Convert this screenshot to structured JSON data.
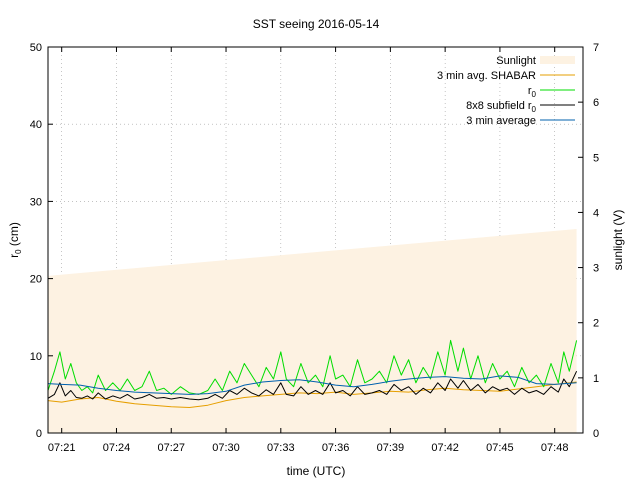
{
  "chart_data": {
    "type": "line",
    "title": "SST seeing 2016-05-14",
    "xlabel": "time (UTC)",
    "ylabel": "r",
    "ylabel_sub": "0",
    "ylabel_unit": " (cm)",
    "y2label": "sunlight (V)",
    "xlim": [
      20.25,
      49.55
    ],
    "ylim": [
      0,
      50
    ],
    "y2lim": [
      0,
      7
    ],
    "x_ticks": [
      {
        "minute": 21,
        "label": "07:21"
      },
      {
        "minute": 24,
        "label": "07:24"
      },
      {
        "minute": 27,
        "label": "07:27"
      },
      {
        "minute": 30,
        "label": "07:30"
      },
      {
        "minute": 33,
        "label": "07:33"
      },
      {
        "minute": 36,
        "label": "07:36"
      },
      {
        "minute": 39,
        "label": "07:39"
      },
      {
        "minute": 42,
        "label": "07:42"
      },
      {
        "minute": 45,
        "label": "07:45"
      },
      {
        "minute": 48,
        "label": "07:48"
      }
    ],
    "y_ticks": [
      "0",
      "10",
      "20",
      "30",
      "40",
      "50"
    ],
    "y2_ticks": [
      "0",
      "1",
      "2",
      "3",
      "4",
      "5",
      "6",
      "7"
    ],
    "grid": true,
    "legend_position": "top-right",
    "series": [
      {
        "name": "Sunlight",
        "axis": "y2",
        "style": "area",
        "color": "#fdf2e2",
        "x": [
          20.25,
          49.2
        ],
        "y": [
          2.85,
          3.7
        ]
      },
      {
        "name": "3 min avg. SHABAR",
        "axis": "y",
        "style": "line",
        "color": "#e69f00",
        "x": [
          20.25,
          21,
          22,
          23,
          24,
          25,
          26,
          27,
          28,
          29,
          30,
          31,
          32,
          33,
          34,
          35,
          36,
          37,
          38,
          39,
          40,
          41,
          42,
          43,
          44,
          45,
          46,
          47,
          48,
          49.2
        ],
        "y": [
          4.2,
          4.0,
          4.4,
          4.6,
          4.1,
          3.8,
          3.6,
          3.4,
          3.3,
          3.6,
          4.2,
          4.6,
          4.8,
          5.0,
          5.2,
          5.1,
          5.3,
          5.0,
          5.2,
          5.4,
          5.3,
          5.6,
          5.8,
          5.6,
          5.5,
          5.4,
          5.7,
          6.0,
          6.3,
          6.6
        ]
      },
      {
        "name": "r0",
        "label_main": "r",
        "label_sub": "0",
        "axis": "y",
        "style": "line",
        "color": "#00dd00",
        "x": [
          20.25,
          20.6,
          20.9,
          21.2,
          21.5,
          21.8,
          22.1,
          22.4,
          22.7,
          23.0,
          23.4,
          23.8,
          24.2,
          24.6,
          25.0,
          25.4,
          25.8,
          26.2,
          26.6,
          27.0,
          27.5,
          28.0,
          28.5,
          29.0,
          29.4,
          29.8,
          30.2,
          30.6,
          31.0,
          31.4,
          31.8,
          32.2,
          32.6,
          33.0,
          33.3,
          33.7,
          34.1,
          34.5,
          34.9,
          35.3,
          35.7,
          36.0,
          36.4,
          36.8,
          37.2,
          37.6,
          38.0,
          38.4,
          38.8,
          39.2,
          39.6,
          40.0,
          40.4,
          40.8,
          41.2,
          41.6,
          42.0,
          42.3,
          42.7,
          43.0,
          43.4,
          43.8,
          44.2,
          44.6,
          45.0,
          45.4,
          45.8,
          46.2,
          46.6,
          47.0,
          47.4,
          47.8,
          48.2,
          48.5,
          48.8,
          49.2
        ],
        "y": [
          5.5,
          8.0,
          10.5,
          7.0,
          9.0,
          6.5,
          5.5,
          6.0,
          5.2,
          7.5,
          5.5,
          6.5,
          5.5,
          7.0,
          5.5,
          6.0,
          8.0,
          5.5,
          5.8,
          5.0,
          6.0,
          5.2,
          5.0,
          5.5,
          7.0,
          5.5,
          8.0,
          6.5,
          9.0,
          7.5,
          6.0,
          8.5,
          7.0,
          10.5,
          7.0,
          6.0,
          9.0,
          6.5,
          7.5,
          6.0,
          10.0,
          7.0,
          7.5,
          6.0,
          9.5,
          6.5,
          7.0,
          8.0,
          6.5,
          10.0,
          7.5,
          9.5,
          6.5,
          8.5,
          7.0,
          10.5,
          7.5,
          12.0,
          8.0,
          11.0,
          7.0,
          10.0,
          6.5,
          9.0,
          7.0,
          8.0,
          6.0,
          8.5,
          6.5,
          7.5,
          6.0,
          9.0,
          6.5,
          10.5,
          8.0,
          12.0
        ]
      },
      {
        "name": "8x8 subfield r0",
        "label_main": "8x8 subfield r",
        "label_sub": "0",
        "axis": "y",
        "style": "line",
        "color": "#000000",
        "x": [
          20.25,
          20.6,
          20.9,
          21.2,
          21.5,
          21.8,
          22.1,
          22.4,
          22.7,
          23.0,
          23.4,
          23.8,
          24.2,
          24.6,
          25.0,
          25.4,
          25.8,
          26.2,
          26.6,
          27.0,
          27.5,
          28.0,
          28.5,
          29.0,
          29.4,
          29.8,
          30.2,
          30.6,
          31.0,
          31.4,
          31.8,
          32.2,
          32.6,
          33.0,
          33.3,
          33.7,
          34.1,
          34.5,
          34.9,
          35.3,
          35.7,
          36.0,
          36.4,
          36.8,
          37.2,
          37.6,
          38.0,
          38.4,
          38.8,
          39.2,
          39.6,
          40.0,
          40.4,
          40.8,
          41.2,
          41.6,
          42.0,
          42.3,
          42.7,
          43.0,
          43.4,
          43.8,
          44.2,
          44.6,
          45.0,
          45.4,
          45.8,
          46.2,
          46.6,
          47.0,
          47.4,
          47.8,
          48.2,
          48.5,
          48.8,
          49.2
        ],
        "y": [
          4.5,
          5.0,
          6.5,
          4.8,
          5.5,
          4.6,
          4.5,
          4.8,
          4.4,
          5.2,
          4.4,
          4.8,
          4.5,
          5.0,
          4.4,
          4.6,
          5.0,
          4.5,
          4.6,
          4.4,
          4.6,
          4.4,
          4.3,
          4.5,
          5.0,
          4.5,
          5.5,
          5.0,
          5.8,
          5.2,
          4.8,
          5.6,
          5.0,
          6.5,
          5.0,
          4.8,
          6.0,
          5.0,
          5.5,
          5.0,
          6.5,
          5.2,
          5.5,
          4.8,
          6.0,
          5.0,
          5.2,
          5.5,
          5.0,
          6.3,
          5.5,
          6.0,
          5.0,
          5.8,
          5.2,
          6.5,
          5.5,
          7.0,
          5.8,
          6.8,
          5.5,
          6.3,
          5.2,
          6.0,
          5.5,
          5.8,
          5.0,
          5.8,
          5.2,
          5.5,
          5.0,
          6.0,
          5.3,
          7.0,
          6.0,
          8.0
        ]
      },
      {
        "name": "3 min average",
        "axis": "y",
        "style": "line",
        "color": "#0060ad",
        "x": [
          20.25,
          21,
          22,
          23,
          24,
          25,
          26,
          27,
          28,
          29,
          30,
          31,
          32,
          33,
          34,
          35,
          36,
          37,
          38,
          39,
          40,
          41,
          42,
          43,
          44,
          45,
          46,
          47,
          48,
          49.2
        ],
        "y": [
          6.4,
          6.3,
          6.2,
          5.8,
          5.5,
          5.3,
          5.2,
          5.1,
          5.0,
          5.1,
          5.4,
          6.2,
          6.6,
          6.8,
          6.9,
          6.6,
          6.2,
          6.0,
          6.3,
          6.7,
          7.0,
          7.2,
          7.3,
          7.1,
          7.0,
          7.4,
          7.2,
          6.4,
          6.3,
          6.5
        ]
      }
    ]
  }
}
